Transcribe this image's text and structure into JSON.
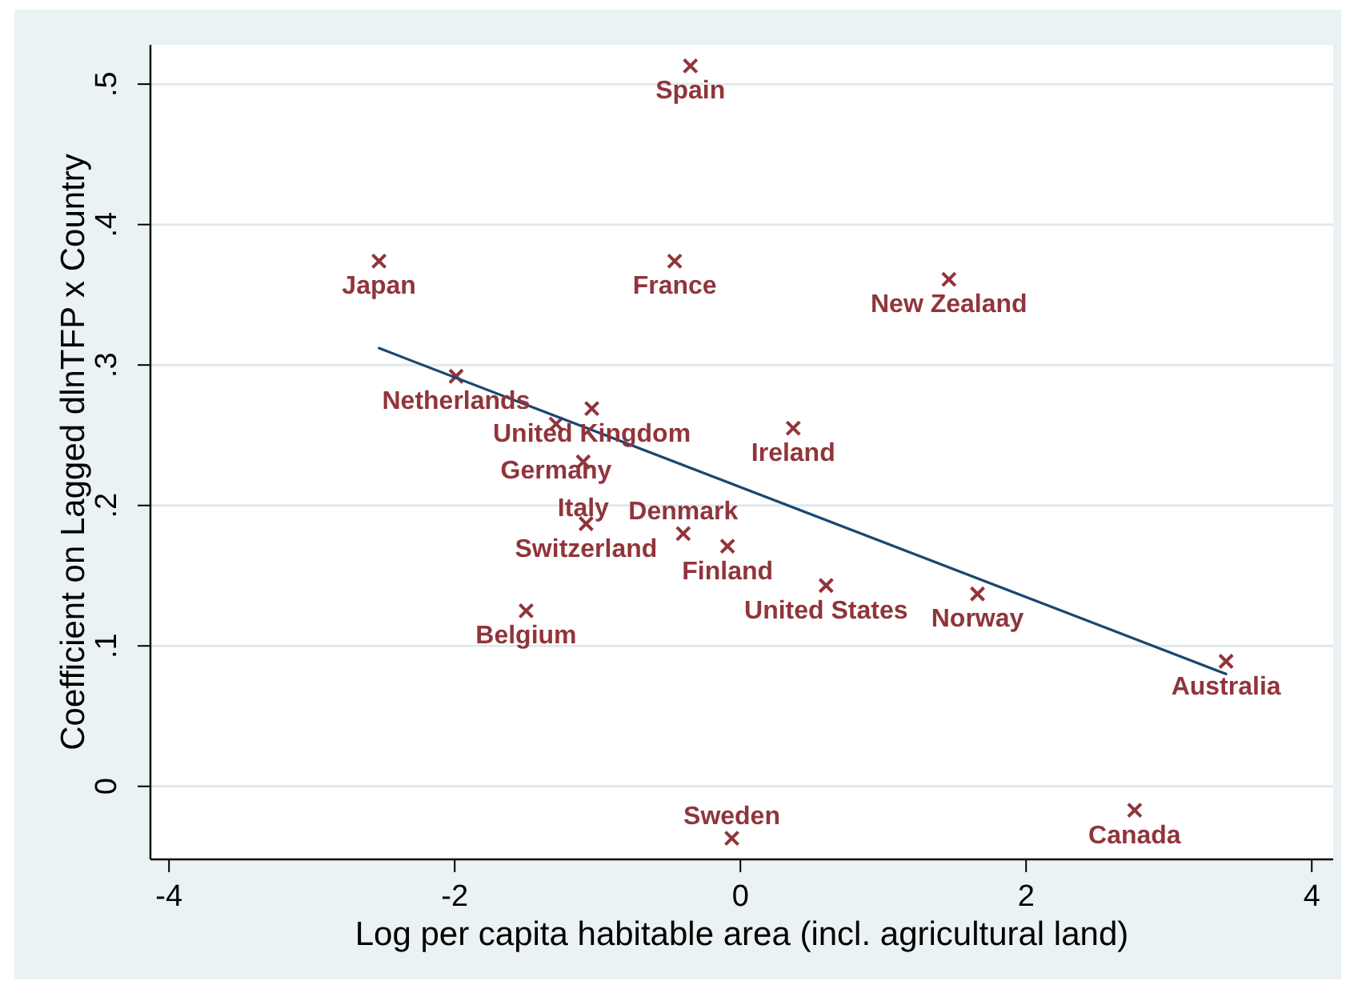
{
  "chart_data": {
    "type": "scatter",
    "xlabel": "Log per capita habitable area (incl. agricultural land)",
    "ylabel": "Coefficient on Lagged dlnTFP x Country",
    "xlim": [
      -4.13,
      4.15
    ],
    "ylim": [
      -0.052,
      0.528
    ],
    "xticks": [
      -4,
      -2,
      0,
      2,
      4
    ],
    "yticks": [
      0,
      {
        "value": 0.1,
        "label": ".1"
      },
      {
        "value": 0.2,
        "label": ".2"
      },
      {
        "value": 0.3,
        "label": ".3"
      },
      {
        "value": 0.4,
        "label": ".4"
      },
      {
        "value": 0.5,
        "label": ".5"
      }
    ],
    "grid": "y",
    "marker": "cross",
    "series": [
      {
        "color": "#90353b",
        "x": [
          -0.35,
          -2.53,
          -0.46,
          1.46,
          -1.99,
          -1.04,
          -1.29,
          -1.1,
          0.37,
          -1.08,
          -0.4,
          -0.09,
          0.6,
          -1.5,
          1.66,
          3.4,
          2.76,
          -0.06
        ],
        "values": [
          0.513,
          0.374,
          0.374,
          0.361,
          0.292,
          0.269,
          0.258,
          0.231,
          0.255,
          0.187,
          0.18,
          0.171,
          0.143,
          0.125,
          0.137,
          0.089,
          -0.017,
          -0.037
        ]
      },
      {
        "type": "line",
        "color": "#1a476f",
        "marker": "none",
        "x": [
          -2.53,
          3.4
        ],
        "values": [
          0.312,
          0.08
        ]
      }
    ],
    "annotations": [
      {
        "text": "Spain",
        "x": -0.35,
        "y": 0.513
      },
      {
        "text": "Japan",
        "x": -2.53,
        "y": 0.374
      },
      {
        "text": "France",
        "x": -0.46,
        "y": 0.374
      },
      {
        "text": "New Zealand",
        "x": 1.46,
        "y": 0.361
      },
      {
        "text": "Netherlands",
        "x": -1.99,
        "y": 0.292
      },
      {
        "text": "United Kingdom",
        "x": -1.04,
        "y": 0.269
      },
      {
        "text": "Germany",
        "x": -1.29,
        "y": 0.258
      },
      {
        "text": "Italy",
        "x": -1.1,
        "y": 0.231
      },
      {
        "text": "Ireland",
        "x": 0.37,
        "y": 0.255
      },
      {
        "text": "Switzerland",
        "x": -1.08,
        "y": 0.187
      },
      {
        "text": "Denmark",
        "x": -0.4,
        "y": 0.18
      },
      {
        "text": "Finland",
        "x": -0.09,
        "y": 0.171
      },
      {
        "text": "United States",
        "x": 0.6,
        "y": 0.143
      },
      {
        "text": "Belgium",
        "x": -1.5,
        "y": 0.125
      },
      {
        "text": "Norway",
        "x": 1.66,
        "y": 0.137
      },
      {
        "text": "Australia",
        "x": 3.4,
        "y": 0.089
      },
      {
        "text": "Canada",
        "x": 2.76,
        "y": -0.017
      },
      {
        "text": "Sweden",
        "x": -0.06,
        "y": -0.037
      }
    ]
  }
}
